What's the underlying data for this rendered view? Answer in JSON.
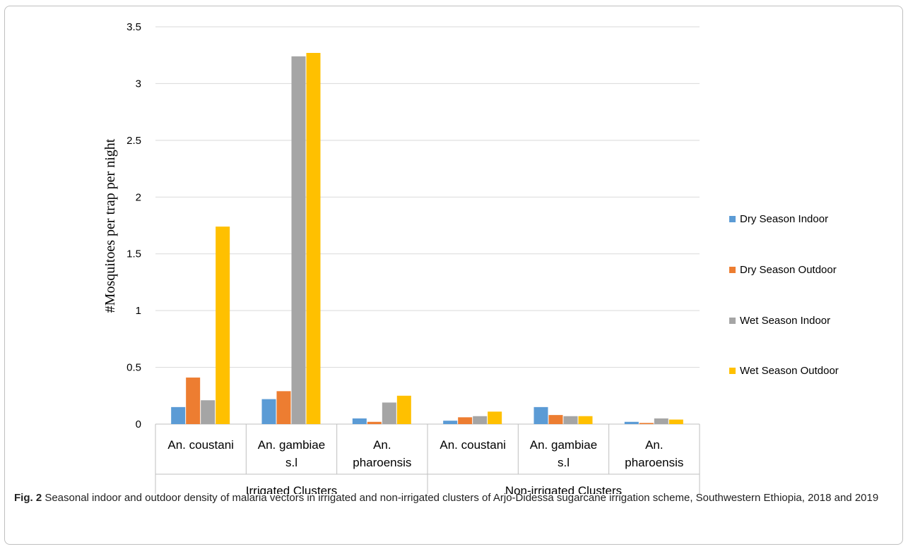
{
  "chart_data": {
    "type": "bar",
    "ylabel": "#Mosquitoes per trap per night",
    "ylim": [
      0,
      3.5
    ],
    "yticks": [
      "0",
      "0.5",
      "1",
      "1.5",
      "2",
      "2.5",
      "3",
      "3.5"
    ],
    "grid": true,
    "legend_position": "right",
    "groups": [
      {
        "label": "Irrigated Clusters",
        "categories": [
          [
            "An. coustani"
          ],
          [
            "An. gambiae",
            "s.l"
          ],
          [
            "An.",
            "pharoensis"
          ]
        ]
      },
      {
        "label": "Non-irrigated  Clusters",
        "categories": [
          [
            "An. coustani"
          ],
          [
            "An. gambiae",
            "s.l"
          ],
          [
            "An.",
            "pharoensis"
          ]
        ]
      }
    ],
    "categories": [
      "Irrigated An. coustani",
      "Irrigated An. gambiae s.l",
      "Irrigated An. pharoensis",
      "Non-irrigated An. coustani",
      "Non-irrigated An. gambiae s.l",
      "Non-irrigated An. pharoensis"
    ],
    "series": [
      {
        "name": "Dry Season Indoor",
        "color": "#5b9bd5",
        "values": [
          0.15,
          0.22,
          0.05,
          0.03,
          0.15,
          0.02
        ]
      },
      {
        "name": "Dry Season Outdoor",
        "color": "#ed7d31",
        "values": [
          0.41,
          0.29,
          0.02,
          0.06,
          0.08,
          0.01
        ]
      },
      {
        "name": "Wet Season Indoor",
        "color": "#a5a5a5",
        "values": [
          0.21,
          3.24,
          0.19,
          0.07,
          0.07,
          0.05
        ]
      },
      {
        "name": "Wet Season Outdoor",
        "color": "#ffc000",
        "values": [
          1.74,
          3.27,
          0.25,
          0.11,
          0.07,
          0.04
        ]
      }
    ]
  },
  "caption": {
    "label": "Fig. 2",
    "text": "  Seasonal indoor and outdoor density of malaria vectors in irrigated and non-irrigated clusters of Arjo-Didessa sugarcane irrigation scheme, Southwestern Ethiopia, 2018 and 2019"
  }
}
